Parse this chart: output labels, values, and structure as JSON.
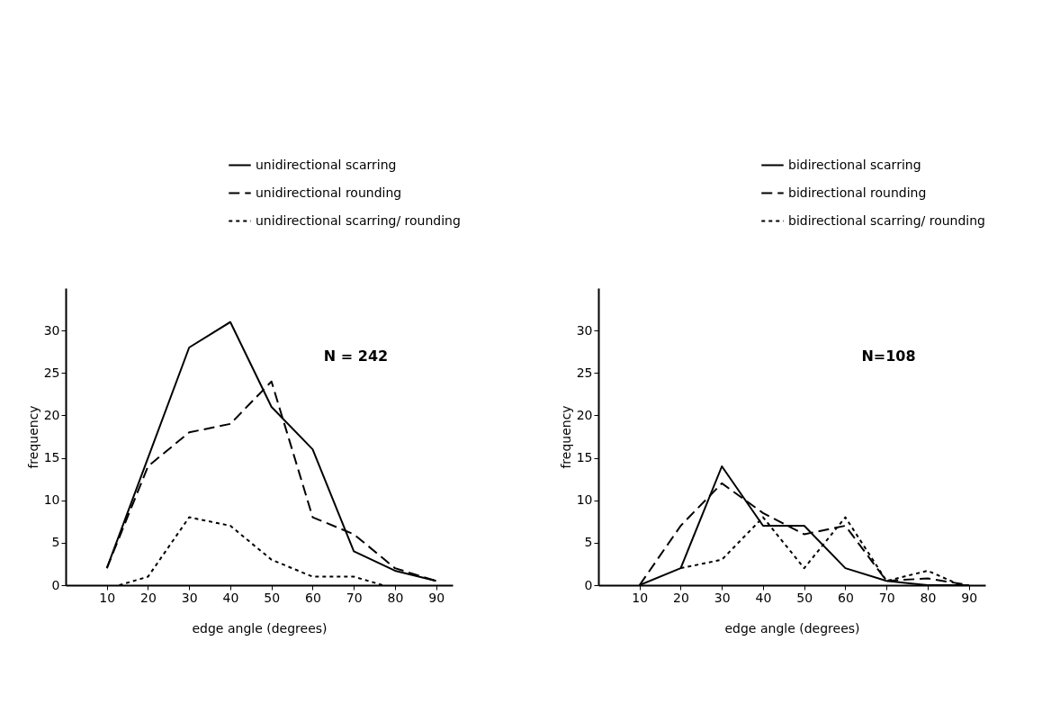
{
  "chart_data": [
    {
      "type": "line",
      "xlabel": "edge angle (degrees)",
      "ylabel": "frequency",
      "x": [
        10,
        20,
        30,
        40,
        50,
        60,
        70,
        80,
        90
      ],
      "xlim": [
        0,
        94
      ],
      "xticks": [
        10,
        20,
        30,
        40,
        50,
        60,
        70,
        80,
        90
      ],
      "ylim": [
        0,
        35
      ],
      "yticks": [
        0,
        5,
        10,
        15,
        20,
        25,
        30
      ],
      "grid": false,
      "marker": "none",
      "legend": "top right",
      "annotations": [
        "N = 242"
      ],
      "series": [
        {
          "name": "unidirectional scarring",
          "color": "#000000",
          "line_style": "solid",
          "values": [
            2,
            15,
            28,
            31,
            21,
            16,
            4,
            1.7,
            0.5
          ]
        },
        {
          "name": "unidirectional rounding",
          "color": "#000000",
          "line_style": "dashed",
          "values": [
            2,
            14,
            18,
            19,
            24,
            8,
            6,
            2,
            0.5
          ]
        },
        {
          "name": "unidirectional scarring/ rounding",
          "color": "#000000",
          "line_style": "dotted",
          "x": [
            13,
            20,
            30,
            40,
            50,
            60,
            70,
            77
          ],
          "values": [
            0,
            1,
            8,
            7,
            3,
            1,
            1,
            0
          ]
        }
      ]
    },
    {
      "type": "line",
      "xlabel": "edge angle (degrees)",
      "ylabel": "frequency",
      "x": [
        10,
        20,
        30,
        40,
        50,
        60,
        70,
        80,
        90
      ],
      "xlim": [
        0,
        94
      ],
      "xticks": [
        10,
        20,
        30,
        40,
        50,
        60,
        70,
        80,
        90
      ],
      "ylim": [
        0,
        35
      ],
      "yticks": [
        0,
        5,
        10,
        15,
        20,
        25,
        30
      ],
      "grid": false,
      "marker": "none",
      "legend": "top right",
      "annotations": [
        "N=108"
      ],
      "series": [
        {
          "name": "bidirectional scarring",
          "color": "#000000",
          "line_style": "solid",
          "values": [
            0,
            2,
            14,
            7,
            7,
            2,
            0.5,
            0,
            0
          ]
        },
        {
          "name": "bidirectional rounding",
          "color": "#000000",
          "line_style": "dashed",
          "values": [
            0,
            7,
            12,
            8.5,
            6,
            7,
            0.5,
            0.8,
            0
          ]
        },
        {
          "name": "bidirectional scarring/ rounding",
          "color": "#000000",
          "line_style": "dotted",
          "x": [
            20,
            30,
            40,
            50,
            60,
            70,
            80,
            88
          ],
          "values": [
            2,
            3,
            8,
            2,
            8,
            0.5,
            1.7,
            0
          ]
        }
      ]
    }
  ]
}
